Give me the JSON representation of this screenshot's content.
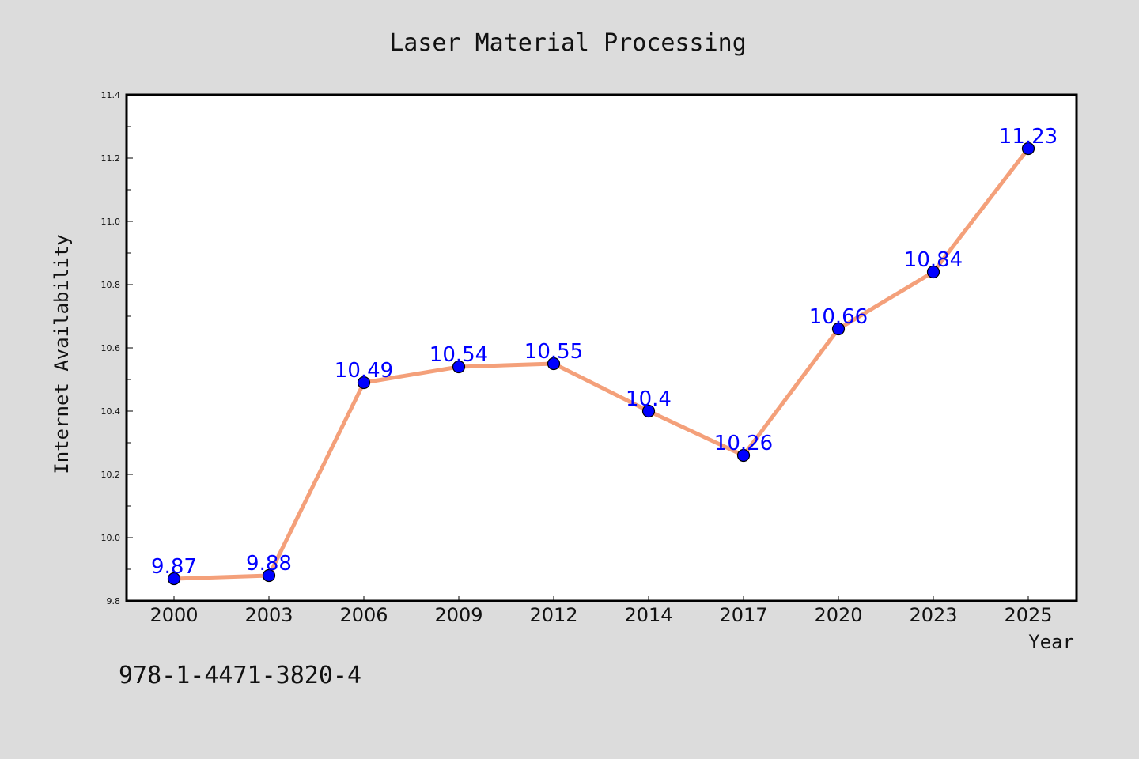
{
  "chart_data": {
    "type": "line",
    "title": "Laser Material Processing",
    "xlabel": "Year",
    "ylabel": "Internet Availability",
    "x": [
      "2000",
      "2003",
      "2006",
      "2009",
      "2012",
      "2014",
      "2017",
      "2020",
      "2023",
      "2025"
    ],
    "series": [
      {
        "values": [
          9.87,
          9.88,
          10.49,
          10.54,
          10.55,
          10.4,
          10.26,
          10.66,
          10.84,
          11.23
        ],
        "data_labels": [
          "9.87",
          "9.88",
          "10.49",
          "10.54",
          "10.55",
          "10.4",
          "10.26",
          "10.66",
          "10.84",
          "11.23"
        ],
        "line_color": "#f4a07a",
        "marker_color": "#0000ff"
      }
    ],
    "ylim": [
      9.8,
      11.4
    ],
    "yticks": [
      "9.8",
      "10.0",
      "10.2",
      "10.4",
      "10.6",
      "10.8",
      "11.0",
      "11.2",
      "11.4"
    ],
    "grid": false,
    "legend": "none"
  },
  "footer_text": "978-1-4471-3820-4",
  "colors": {
    "background": "#dcdcdc",
    "plot_background": "#ffffff",
    "axes": "#000000"
  }
}
